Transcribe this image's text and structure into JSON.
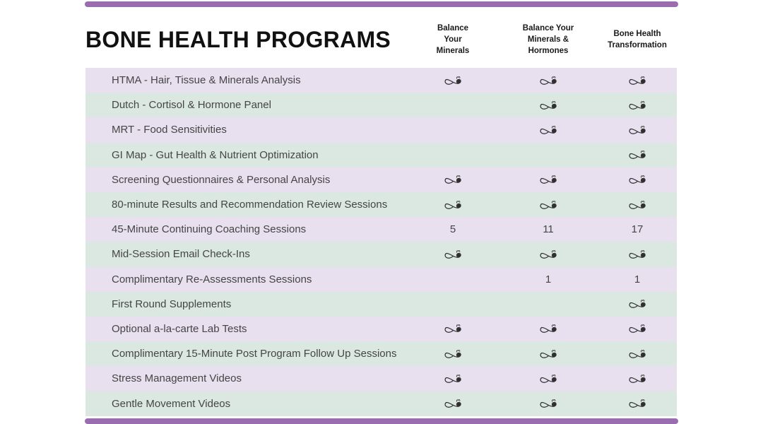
{
  "page": {
    "title": "BONE HEALTH PROGRAMS"
  },
  "colors": {
    "accent": "#9A6DB0",
    "row_lavender": "#E8DFEF",
    "row_mint": "#DBE8E2"
  },
  "icons": {
    "check": "infinity-flourish"
  },
  "table": {
    "columns": [
      "Balance Your Minerals",
      "Balance Your Minerals & Hormones",
      "Bone Health Transformation"
    ],
    "rows": [
      {
        "label": "HTMA - Hair, Tissue & Minerals Analysis",
        "cells": [
          "check",
          "check",
          "check"
        ]
      },
      {
        "label": "Dutch - Cortisol & Hormone Panel",
        "cells": [
          "",
          "check",
          "check"
        ]
      },
      {
        "label": "MRT - Food Sensitivities",
        "cells": [
          "",
          "check",
          "check"
        ]
      },
      {
        "label": "GI Map - Gut Health & Nutrient Optimization",
        "cells": [
          "",
          "",
          "check"
        ]
      },
      {
        "label": "Screening Questionnaires & Personal Analysis",
        "cells": [
          "check",
          "check",
          "check"
        ]
      },
      {
        "label": "80-minute Results and Recommendation Review Sessions",
        "cells": [
          "check",
          "check",
          "check"
        ]
      },
      {
        "label": "45-Minute Continuing Coaching Sessions",
        "cells": [
          "5",
          "11",
          "17"
        ]
      },
      {
        "label": "Mid-Session Email Check-Ins",
        "cells": [
          "check",
          "check",
          "check"
        ]
      },
      {
        "label": "Complimentary Re-Assessments Sessions",
        "cells": [
          "",
          "1",
          "1"
        ]
      },
      {
        "label": "First Round Supplements",
        "cells": [
          "",
          "",
          "check"
        ]
      },
      {
        "label": "Optional a-la-carte Lab Tests",
        "cells": [
          "check",
          "check",
          "check"
        ]
      },
      {
        "label": "Complimentary 15-Minute Post Program Follow Up Sessions",
        "cells": [
          "check",
          "check",
          "check"
        ]
      },
      {
        "label": "Stress Management Videos",
        "cells": [
          "check",
          "check",
          "check"
        ]
      },
      {
        "label": "Gentle Movement Videos",
        "cells": [
          "check",
          "check",
          "check"
        ]
      }
    ]
  }
}
